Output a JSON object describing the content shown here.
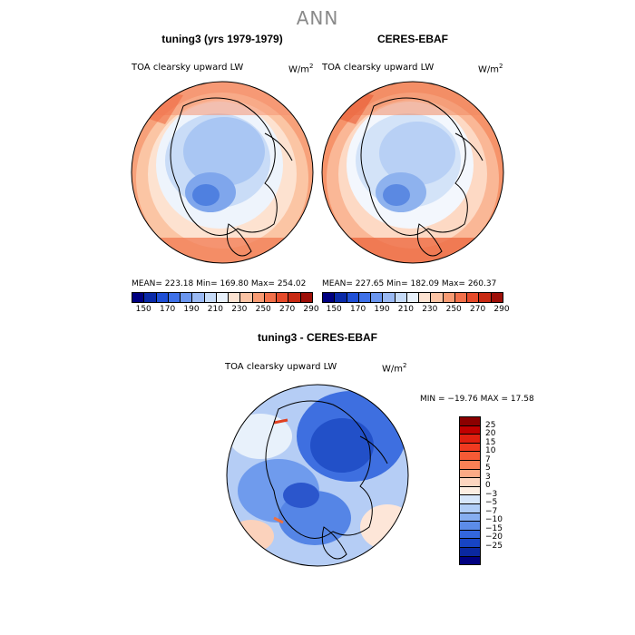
{
  "title": "ANN",
  "panels": [
    {
      "title": "tuning3 (yrs 1979-1979)",
      "variable": "TOA clearsky upward LW",
      "unit": "W/m",
      "unit_exp": "2",
      "stats": "MEAN= 223.18   Min= 169.80   Max= 254.02"
    },
    {
      "title": "CERES-EBAF",
      "variable": "TOA clearsky upward LW",
      "unit": "W/m",
      "unit_exp": "2",
      "stats": "MEAN= 227.65   Min= 182.09   Max= 260.37"
    },
    {
      "title": "tuning3 - CERES-EBAF",
      "variable": "TOA clearsky upward LW",
      "unit": "W/m",
      "unit_exp": "2",
      "stats": "MIN = −19.76  MAX =  17.58"
    }
  ],
  "chart_data": [
    {
      "type": "heatmap",
      "title": "tuning3 (yrs 1979-1979)",
      "projection": "north polar stereographic",
      "mean": 223.18,
      "min": 169.8,
      "max": 254.02,
      "colorbar_levels": [
        150,
        170,
        190,
        210,
        230,
        250,
        270,
        290
      ],
      "colorbar_colors": [
        "#000080",
        "#0a2aa8",
        "#1f4fd6",
        "#3f71e8",
        "#6b96ef",
        "#9ab9f3",
        "#c6dbf8",
        "#e8f1fb",
        "#fde3d2",
        "#fbc3a4",
        "#f89b73",
        "#f2704a",
        "#e54a2a",
        "#c82a13",
        "#9e0f08"
      ]
    },
    {
      "type": "heatmap",
      "title": "CERES-EBAF",
      "projection": "north polar stereographic",
      "mean": 227.65,
      "min": 182.09,
      "max": 260.37,
      "colorbar_levels": [
        150,
        170,
        190,
        210,
        230,
        250,
        270,
        290
      ],
      "colorbar_colors": [
        "#000080",
        "#0a2aa8",
        "#1f4fd6",
        "#3f71e8",
        "#6b96ef",
        "#9ab9f3",
        "#c6dbf8",
        "#e8f1fb",
        "#fde3d2",
        "#fbc3a4",
        "#f89b73",
        "#f2704a",
        "#e54a2a",
        "#c82a13",
        "#9e0f08"
      ]
    },
    {
      "type": "heatmap",
      "title": "tuning3 - CERES-EBAF",
      "projection": "north polar stereographic",
      "min": -19.76,
      "max": 17.58,
      "colorbar_levels": [
        "25",
        "20",
        "15",
        "10",
        "7",
        "5",
        "3",
        "0",
        "−3",
        "−5",
        "−7",
        "−10",
        "−15",
        "−20",
        "−25"
      ],
      "colorbar_colors": [
        "#8b0000",
        "#c00000",
        "#e02010",
        "#f03a20",
        "#f65a35",
        "#f98055",
        "#fba985",
        "#fdd5bf",
        "#fdeee2",
        "#d6e6fa",
        "#b0cdf6",
        "#86aef0",
        "#5c8ce8",
        "#3366dd",
        "#1744c4",
        "#0a28a0",
        "#000080"
      ]
    }
  ]
}
